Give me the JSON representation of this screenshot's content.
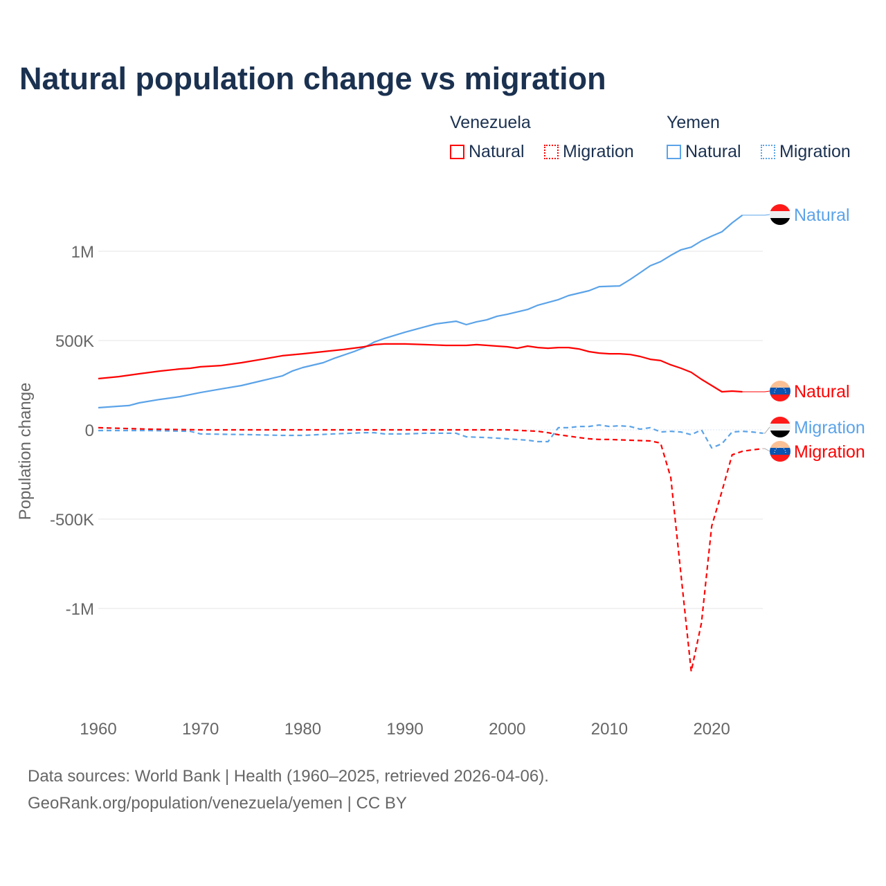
{
  "title": "Natural population change vs migration",
  "legend": {
    "groups": [
      {
        "name": "Venezuela",
        "items": [
          {
            "label": "Natural",
            "color": "#ff0000",
            "style": "solid"
          },
          {
            "label": "Migration",
            "color": "#ff0000",
            "style": "dotted"
          }
        ]
      },
      {
        "name": "Yemen",
        "items": [
          {
            "label": "Natural",
            "color": "#5ba3e8",
            "style": "solid"
          },
          {
            "label": "Migration",
            "color": "#5ba3e8",
            "style": "dotted"
          }
        ]
      }
    ]
  },
  "footer": {
    "line1": "Data sources: World Bank | Health (1960–2025, retrieved 2026-04-06).",
    "line2": "GeoRank.org/population/venezuela/yemen | CC BY"
  },
  "chart_data": {
    "type": "line",
    "title": "Natural population change vs migration",
    "xlabel": "",
    "ylabel": "Population change",
    "xlim": [
      1960,
      2025
    ],
    "ylim": [
      -1500000,
      1300000
    ],
    "x_ticks": [
      1960,
      1970,
      1980,
      1990,
      2000,
      2010,
      2020
    ],
    "y_ticks": [
      {
        "v": 1000000,
        "label": "1M"
      },
      {
        "v": 500000,
        "label": "500K"
      },
      {
        "v": 0,
        "label": "0"
      },
      {
        "v": -500000,
        "label": "-500K"
      },
      {
        "v": -1000000,
        "label": "-1M"
      }
    ],
    "grid": true,
    "series": [
      {
        "name": "Yemen Natural",
        "label": "Natural",
        "country": "yemen",
        "color": "#5ba3e8",
        "dash": false,
        "points": [
          [
            1960,
            124
          ],
          [
            1962,
            132
          ],
          [
            1963,
            136
          ],
          [
            1964,
            151
          ],
          [
            1966,
            170
          ],
          [
            1968,
            186
          ],
          [
            1970,
            209
          ],
          [
            1972,
            229
          ],
          [
            1974,
            248
          ],
          [
            1976,
            275
          ],
          [
            1978,
            302
          ],
          [
            1979,
            330
          ],
          [
            1980,
            349
          ],
          [
            1982,
            376
          ],
          [
            1983,
            399
          ],
          [
            1985,
            438
          ],
          [
            1986,
            461
          ],
          [
            1987,
            492
          ],
          [
            1988,
            512
          ],
          [
            1990,
            547
          ],
          [
            1992,
            578
          ],
          [
            1993,
            593
          ],
          [
            1995,
            608
          ],
          [
            1996,
            589
          ],
          [
            1997,
            605
          ],
          [
            1998,
            616
          ],
          [
            1999,
            636
          ],
          [
            2000,
            647
          ],
          [
            2002,
            674
          ],
          [
            2003,
            698
          ],
          [
            2005,
            729
          ],
          [
            2006,
            752
          ],
          [
            2008,
            779
          ],
          [
            2009,
            802
          ],
          [
            2011,
            806
          ],
          [
            2012,
            841
          ],
          [
            2013,
            880
          ],
          [
            2014,
            919
          ],
          [
            2015,
            942
          ],
          [
            2016,
            977
          ],
          [
            2017,
            1008
          ],
          [
            2018,
            1023
          ],
          [
            2019,
            1058
          ],
          [
            2020,
            1085
          ],
          [
            2021,
            1109
          ],
          [
            2022,
            1159
          ],
          [
            2023,
            1202
          ]
        ]
      },
      {
        "name": "Venezuela Natural",
        "label": "Natural",
        "country": "venezuela",
        "color": "#ff0000",
        "dash": false,
        "points": [
          [
            1960,
            287
          ],
          [
            1962,
            298
          ],
          [
            1964,
            314
          ],
          [
            1966,
            329
          ],
          [
            1968,
            341
          ],
          [
            1969,
            345
          ],
          [
            1970,
            353
          ],
          [
            1972,
            360
          ],
          [
            1974,
            376
          ],
          [
            1976,
            395
          ],
          [
            1978,
            415
          ],
          [
            1980,
            426
          ],
          [
            1982,
            438
          ],
          [
            1984,
            450
          ],
          [
            1986,
            465
          ],
          [
            1987,
            477
          ],
          [
            1988,
            481
          ],
          [
            1990,
            481
          ],
          [
            1992,
            477
          ],
          [
            1994,
            473
          ],
          [
            1996,
            473
          ],
          [
            1997,
            477
          ],
          [
            1999,
            469
          ],
          [
            2000,
            465
          ],
          [
            2001,
            457
          ],
          [
            2002,
            469
          ],
          [
            2003,
            461
          ],
          [
            2004,
            457
          ],
          [
            2005,
            461
          ],
          [
            2006,
            461
          ],
          [
            2007,
            453
          ],
          [
            2008,
            438
          ],
          [
            2009,
            430
          ],
          [
            2010,
            426
          ],
          [
            2011,
            426
          ],
          [
            2012,
            422
          ],
          [
            2013,
            411
          ],
          [
            2014,
            395
          ],
          [
            2015,
            388
          ],
          [
            2016,
            364
          ],
          [
            2017,
            345
          ],
          [
            2018,
            322
          ],
          [
            2019,
            283
          ],
          [
            2020,
            248
          ],
          [
            2021,
            213
          ],
          [
            2022,
            217
          ],
          [
            2023,
            213
          ]
        ]
      },
      {
        "name": "Yemen Migration",
        "label": "Migration",
        "country": "yemen",
        "color": "#5ba3e8",
        "dash": true,
        "points": [
          [
            1960,
            -4
          ],
          [
            1965,
            -4
          ],
          [
            1969,
            -8
          ],
          [
            1970,
            -23
          ],
          [
            1975,
            -27
          ],
          [
            1978,
            -31
          ],
          [
            1980,
            -31
          ],
          [
            1983,
            -23
          ],
          [
            1986,
            -16
          ],
          [
            1987,
            -16
          ],
          [
            1988,
            -23
          ],
          [
            1990,
            -23
          ],
          [
            1992,
            -19
          ],
          [
            1995,
            -19
          ],
          [
            1996,
            -39
          ],
          [
            1998,
            -43
          ],
          [
            2000,
            -50
          ],
          [
            2002,
            -58
          ],
          [
            2003,
            -66
          ],
          [
            2004,
            -66
          ],
          [
            2005,
            12
          ],
          [
            2006,
            12
          ],
          [
            2007,
            19
          ],
          [
            2008,
            19
          ],
          [
            2009,
            27
          ],
          [
            2010,
            19
          ],
          [
            2011,
            23
          ],
          [
            2012,
            19
          ],
          [
            2013,
            4
          ],
          [
            2014,
            12
          ],
          [
            2015,
            -12
          ],
          [
            2016,
            -8
          ],
          [
            2017,
            -12
          ],
          [
            2018,
            -27
          ],
          [
            2019,
            0
          ],
          [
            2020,
            -101
          ],
          [
            2021,
            -78
          ],
          [
            2022,
            -12
          ],
          [
            2023,
            -8
          ],
          [
            2024,
            -12
          ],
          [
            2025,
            -19
          ]
        ]
      },
      {
        "name": "Venezuela Migration",
        "label": "Migration",
        "country": "venezuela",
        "color": "#ff0000",
        "dash": true,
        "points": [
          [
            1960,
            12
          ],
          [
            1965,
            4
          ],
          [
            1970,
            0
          ],
          [
            2000,
            0
          ],
          [
            2003,
            -8
          ],
          [
            2004,
            -16
          ],
          [
            2005,
            -27
          ],
          [
            2006,
            -35
          ],
          [
            2007,
            -43
          ],
          [
            2008,
            -50
          ],
          [
            2009,
            -54
          ],
          [
            2010,
            -54
          ],
          [
            2012,
            -58
          ],
          [
            2014,
            -62
          ],
          [
            2015,
            -74
          ],
          [
            2016,
            -267
          ],
          [
            2017,
            -810
          ],
          [
            2018,
            -1353
          ],
          [
            2019,
            -1081
          ],
          [
            2020,
            -539
          ],
          [
            2021,
            -345
          ],
          [
            2022,
            -140
          ],
          [
            2023,
            -120
          ],
          [
            2024,
            -112
          ],
          [
            2025,
            -105
          ]
        ]
      }
    ],
    "value_unit": "thousands",
    "legend_position": "top-right"
  }
}
